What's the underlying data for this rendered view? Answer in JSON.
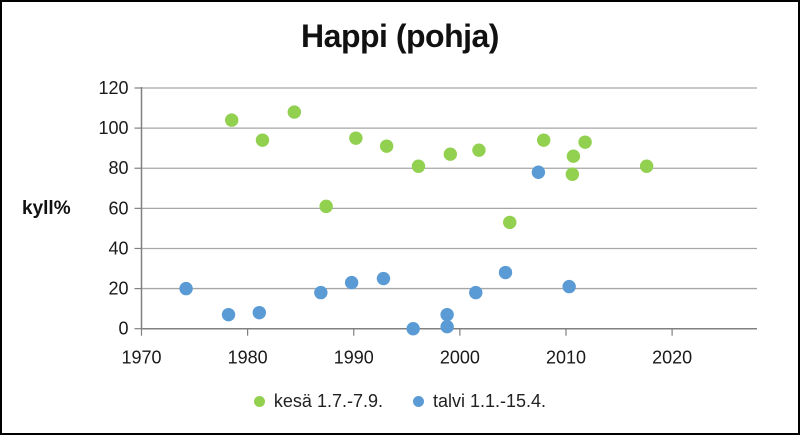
{
  "chart_data": {
    "type": "scatter",
    "title": "Happi (pohja)",
    "ylabel": "kyll%",
    "xlabel": "",
    "xlim": [
      1970,
      2028
    ],
    "ylim": [
      0,
      120
    ],
    "x_ticks": [
      1970,
      1980,
      1990,
      2000,
      2010,
      2020
    ],
    "y_ticks": [
      0,
      20,
      40,
      60,
      80,
      100,
      120
    ],
    "grid": "horizontal-only",
    "legend_position": "bottom",
    "colors": {
      "grid": "#a6a6a6",
      "axis": "#808080",
      "text": "#1a1a1a"
    },
    "series": [
      {
        "name": "kesä 1.7.-7.9.",
        "color": "#92d050",
        "points": [
          [
            1978.5,
            104
          ],
          [
            1981.4,
            94
          ],
          [
            1984.4,
            108
          ],
          [
            1987.4,
            61
          ],
          [
            1990.2,
            95
          ],
          [
            1993.1,
            91
          ],
          [
            1996.1,
            81
          ],
          [
            1999.1,
            87
          ],
          [
            2001.8,
            89
          ],
          [
            2004.7,
            53
          ],
          [
            2007.9,
            94
          ],
          [
            2010.6,
            77
          ],
          [
            2010.7,
            86
          ],
          [
            2011.8,
            93
          ],
          [
            2017.6,
            81
          ]
        ]
      },
      {
        "name": "talvi 1.1.-15.4.",
        "color": "#5b9bd5",
        "points": [
          [
            1974.2,
            20
          ],
          [
            1978.2,
            7
          ],
          [
            1981.1,
            8
          ],
          [
            1986.9,
            18
          ],
          [
            1989.8,
            23
          ],
          [
            1992.8,
            25
          ],
          [
            1995.6,
            0
          ],
          [
            1998.8,
            7
          ],
          [
            1998.8,
            1
          ],
          [
            2001.5,
            18
          ],
          [
            2004.3,
            28
          ],
          [
            2007.4,
            78
          ],
          [
            2010.3,
            21
          ]
        ]
      }
    ]
  }
}
